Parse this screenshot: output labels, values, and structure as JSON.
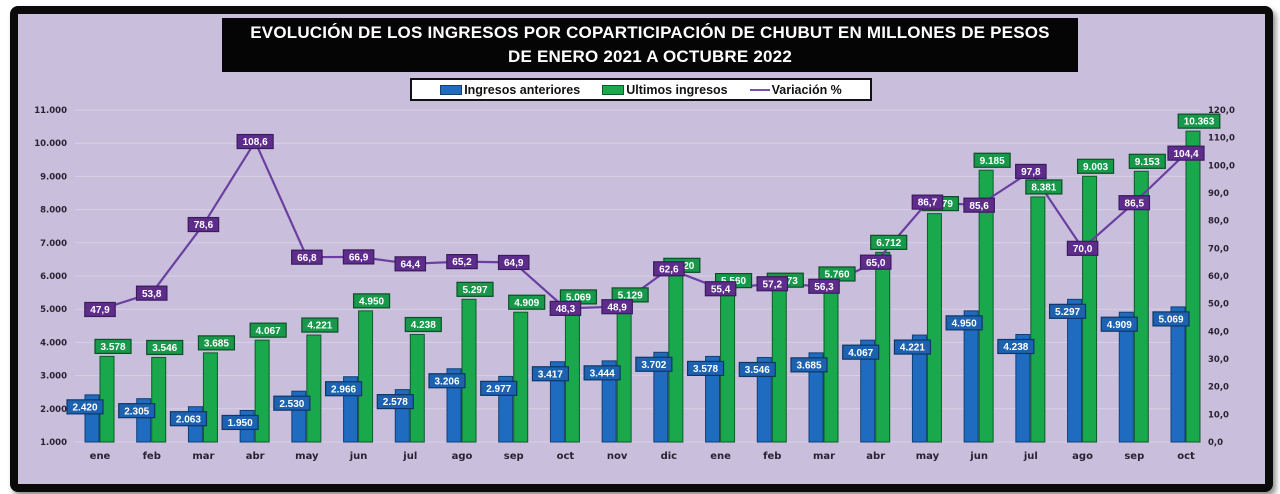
{
  "title": {
    "line1": "EVOLUCIÓN DE LOS INGRESOS POR COPARTICIPACIÓN DE CHUBUT EN MILLONES DE PESOS",
    "line2": "DE ENERO 2021 A OCTUBRE 2022"
  },
  "legend": {
    "items": [
      {
        "label": "Ingresos anteriores",
        "type": "bar",
        "color": "#1f6bbf"
      },
      {
        "label": "Ultimos ingresos",
        "type": "bar",
        "color": "#19a84b"
      },
      {
        "label": "Variación %",
        "type": "line",
        "color": "#6b3fa0"
      }
    ]
  },
  "colors": {
    "background": "#c9bfdc",
    "frame": "#0a0a0a",
    "blue_bar": "#1f6bbf",
    "blue_label": "#1d62b0",
    "green_bar": "#19a84b",
    "green_label": "#17984a",
    "purple_line": "#6b3fa0",
    "purple_label": "#5e2d8c"
  },
  "chart_data": {
    "type": "bar",
    "title": "EVOLUCIÓN DE LOS INGRESOS POR COPARTICIPACIÓN DE CHUBUT EN MILLONES DE PESOS DE ENERO 2021 A OCTUBRE 2022",
    "xlabel": "",
    "ylabel": "",
    "categories": [
      "ene",
      "feb",
      "mar",
      "abr",
      "may",
      "jun",
      "jul",
      "ago",
      "sep",
      "oct",
      "nov",
      "dic",
      "ene",
      "feb",
      "mar",
      "abr",
      "may",
      "jun",
      "jul",
      "ago",
      "sep",
      "oct"
    ],
    "series": [
      {
        "name": "Ingresos anteriores",
        "type": "bar",
        "axis": "left",
        "values": [
          2420,
          2305,
          2063,
          1950,
          2530,
          2966,
          2578,
          3206,
          2977,
          3417,
          3444,
          3702,
          3578,
          3546,
          3685,
          4067,
          4221,
          4950,
          4238,
          5297,
          4909,
          5069
        ],
        "labels": [
          "2.420",
          "2.305",
          "2.063",
          "1.950",
          "2.530",
          "2.966",
          "2.578",
          "3.206",
          "2.977",
          "3.417",
          "3.444",
          "3.702",
          "3.578",
          "3.546",
          "3.685",
          "4.067",
          "4.221",
          "4.950",
          "4.238",
          "5.297",
          "4.909",
          "5.069"
        ]
      },
      {
        "name": "Ultimos ingresos",
        "type": "bar",
        "axis": "left",
        "values": [
          3578,
          3546,
          3685,
          4067,
          4221,
          4950,
          4238,
          5297,
          4909,
          5069,
          5129,
          6020,
          5560,
          5573,
          5760,
          6712,
          7879,
          9185,
          8381,
          9003,
          9153,
          10363
        ],
        "labels": [
          "3.578",
          "3.546",
          "3.685",
          "4.067",
          "4.221",
          "4.950",
          "4.238",
          "5.297",
          "4.909",
          "5.069",
          "5.129",
          "6.020",
          "5.560",
          "5.573",
          "5.760",
          "6.712",
          "7.879",
          "9.185",
          "8.381",
          "9.003",
          "9.153",
          "10.363"
        ]
      },
      {
        "name": "Variación %",
        "type": "line",
        "axis": "right",
        "values": [
          47.9,
          53.8,
          78.6,
          108.6,
          66.8,
          66.9,
          64.4,
          65.2,
          64.9,
          48.3,
          48.9,
          62.6,
          55.4,
          57.2,
          56.3,
          65.0,
          86.7,
          85.6,
          97.8,
          70.0,
          86.5,
          104.4
        ],
        "labels": [
          "47,9",
          "53,8",
          "78,6",
          "108,6",
          "66,8",
          "66,9",
          "64,4",
          "65,2",
          "64,9",
          "48,3",
          "48,9",
          "62,6",
          "55,4",
          "57,2",
          "56,3",
          "65,0",
          "86,7",
          "85,6",
          "97,8",
          "70,0",
          "86,5",
          "104,4"
        ]
      }
    ],
    "y_left": {
      "ylim": [
        1000,
        11000
      ],
      "ticks": [
        "1.000",
        "2.000",
        "3.000",
        "4.000",
        "5.000",
        "6.000",
        "7.000",
        "8.000",
        "9.000",
        "10.000",
        "11.000"
      ]
    },
    "y_right": {
      "ylim": [
        0,
        120
      ],
      "ticks": [
        "0,0",
        "10,0",
        "20,0",
        "30,0",
        "40,0",
        "50,0",
        "60,0",
        "70,0",
        "80,0",
        "90,0",
        "100,0",
        "110,0",
        "120,0"
      ]
    },
    "grid": true,
    "legend_position": "top"
  }
}
